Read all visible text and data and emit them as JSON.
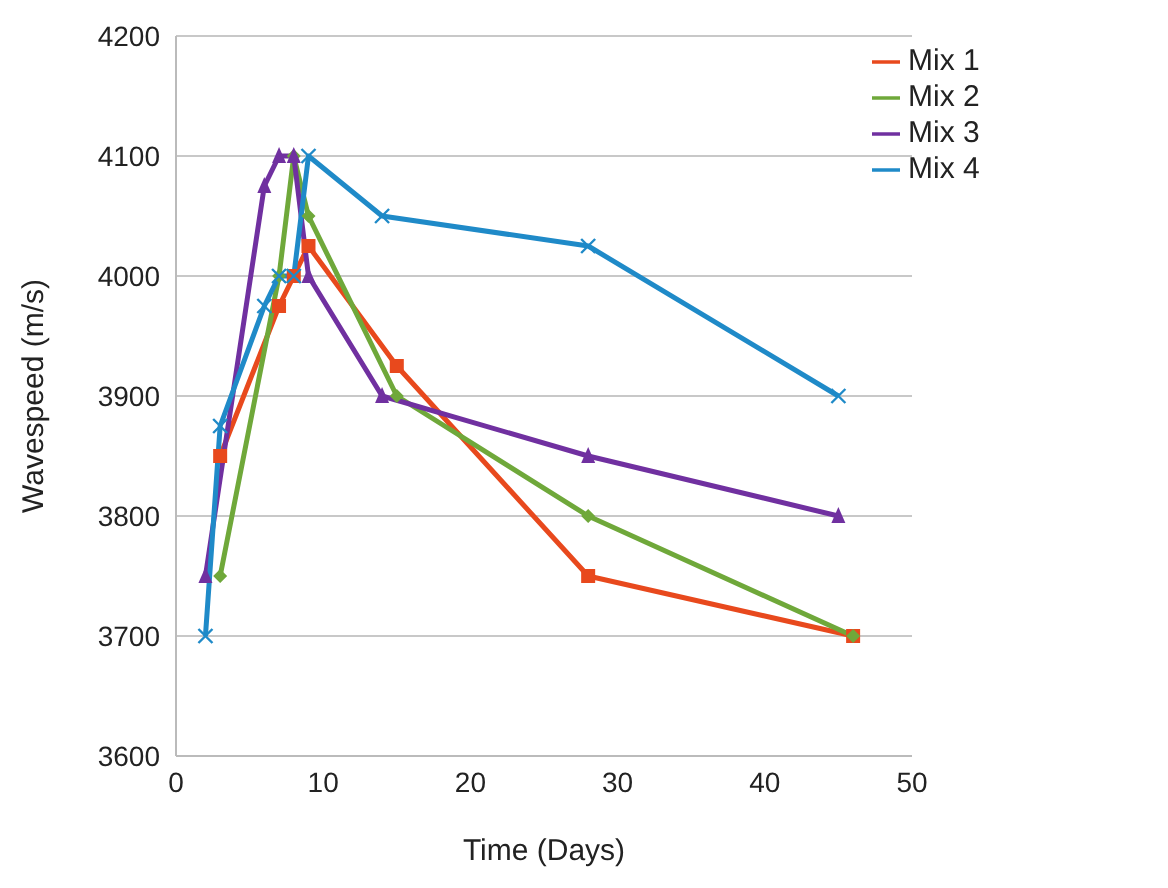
{
  "chart_data": {
    "type": "line",
    "xlabel": "Time (Days)",
    "ylabel": "Wavespeed (m/s)",
    "xlim": [
      0,
      50
    ],
    "xticks": [
      0,
      10,
      20,
      30,
      40,
      50
    ],
    "ylim": [
      3600,
      4200
    ],
    "yticks": [
      3600,
      3700,
      3800,
      3900,
      4000,
      4100,
      4200
    ],
    "grid": "y",
    "legend": "top right",
    "line_style": "solid",
    "series": [
      {
        "name": "Mix 1",
        "color": "#e8491d",
        "marker": "square",
        "x": [
          3,
          7,
          8,
          9,
          15,
          28,
          46
        ],
        "values": [
          3850,
          3975,
          4000,
          4025,
          3925,
          3750,
          3700
        ]
      },
      {
        "name": "Mix 2",
        "color": "#6fa83a",
        "marker": "diamond",
        "x": [
          3,
          7,
          8,
          9,
          15,
          28,
          46
        ],
        "values": [
          3750,
          4000,
          4100,
          4050,
          3900,
          3800,
          3700
        ]
      },
      {
        "name": "Mix 3",
        "color": "#7030a0",
        "marker": "triangle",
        "x": [
          2,
          6,
          7,
          8,
          9,
          14,
          28,
          45
        ],
        "values": [
          3750,
          4075,
          4100,
          4100,
          4000,
          3900,
          3850,
          3800
        ]
      },
      {
        "name": "Mix 4",
        "color": "#1f8ac8",
        "marker": "cross",
        "x": [
          2,
          3,
          6,
          7,
          8,
          9,
          14,
          28,
          45
        ],
        "values": [
          3700,
          3875,
          3975,
          4000,
          4000,
          4100,
          4050,
          4025,
          3900
        ]
      }
    ]
  }
}
